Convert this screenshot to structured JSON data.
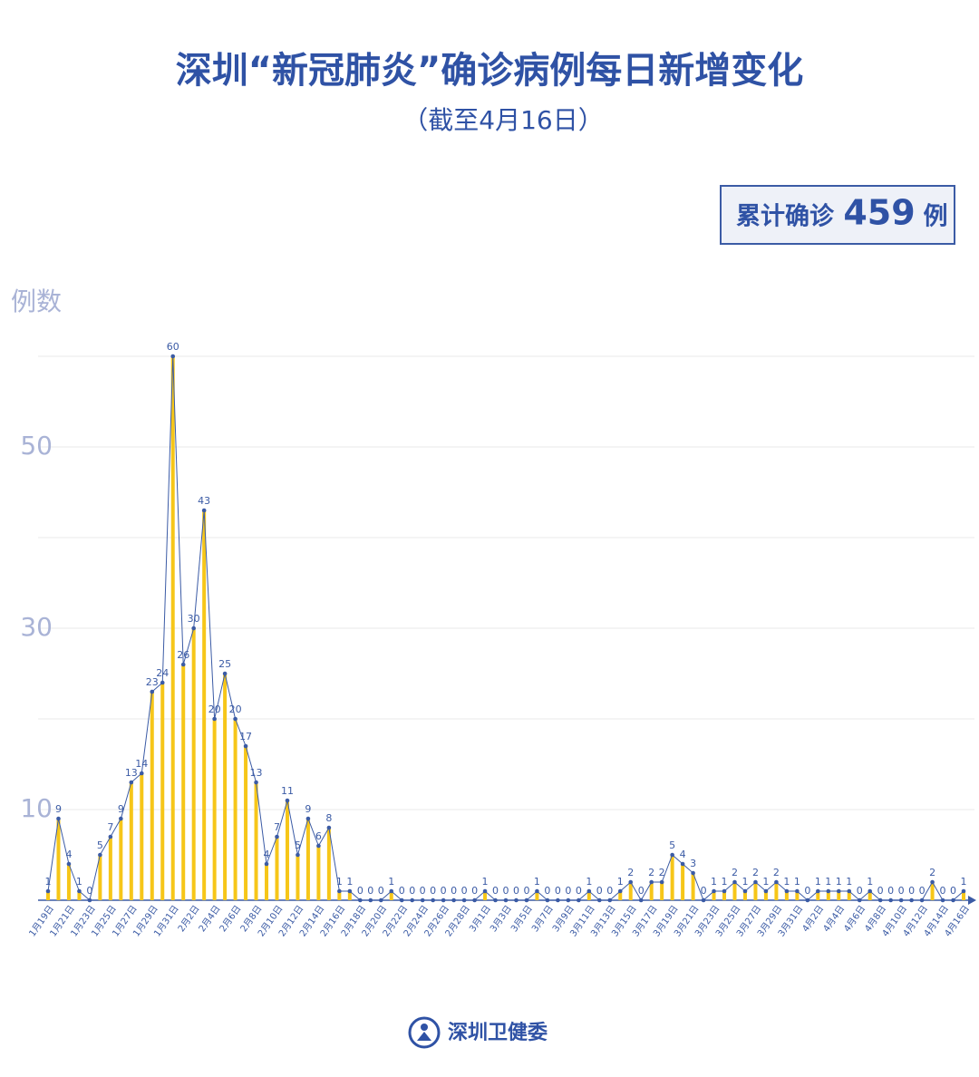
{
  "chart_data": {
    "type": "bar_line",
    "title": "深圳“新冠肺炎”确诊病例每日新增变化",
    "subtitle": "（截至4月16日）",
    "total_box": {
      "prefix": "累计确诊",
      "total": 459,
      "suffix": "例"
    },
    "y_label": "例数",
    "source": "深圳卫健委",
    "categories": [
      "1月19日",
      null,
      "1月21日",
      null,
      "1月23日",
      null,
      "1月25日",
      null,
      "1月27日",
      null,
      "1月29日",
      null,
      "1月31日",
      null,
      "2月2日",
      null,
      "2月4日",
      null,
      "2月6日",
      null,
      "2月8日",
      null,
      "2月10日",
      null,
      "2月12日",
      null,
      "2月14日",
      null,
      "2月16日",
      null,
      "2月18日",
      null,
      "2月20日",
      null,
      "2月22日",
      null,
      "2月24日",
      null,
      "2月26日",
      null,
      "2月28日",
      null,
      "3月1日",
      null,
      "3月3日",
      null,
      "3月5日",
      null,
      "3月7日",
      null,
      "3月9日",
      null,
      "3月11日",
      null,
      "3月13日",
      null,
      "3月15日",
      null,
      "3月17日",
      null,
      "3月19日",
      null,
      "3月21日",
      null,
      "3月23日",
      null,
      "3月25日",
      null,
      "3月27日",
      null,
      "3月29日",
      null,
      "3月31日",
      null,
      "4月2日",
      null,
      "4月4日",
      null,
      "4月6日",
      null,
      "4月8日",
      null,
      "4月10日",
      null,
      "4月12日",
      null,
      "4月14日",
      null,
      "4月16日"
    ],
    "values": [
      1,
      9,
      4,
      1,
      0,
      5,
      7,
      9,
      13,
      14,
      23,
      24,
      60,
      26,
      30,
      43,
      20,
      25,
      20,
      17,
      13,
      4,
      7,
      11,
      5,
      9,
      6,
      8,
      1,
      1,
      0,
      0,
      0,
      1,
      0,
      0,
      0,
      0,
      0,
      0,
      0,
      0,
      1,
      0,
      0,
      0,
      0,
      1,
      0,
      0,
      0,
      0,
      1,
      0,
      0,
      1,
      2,
      0,
      2,
      2,
      5,
      4,
      3,
      0,
      1,
      1,
      2,
      1,
      2,
      1,
      2,
      1,
      1,
      0,
      1,
      1,
      1,
      1,
      0,
      1,
      0,
      0,
      0,
      0,
      0,
      2,
      0,
      0,
      1
    ],
    "bar_color": "#f6c619",
    "line_color": "#3b5ba5",
    "ylim": [
      0,
      60
    ],
    "yticks": [
      10,
      30,
      50
    ],
    "ygrid": [
      10,
      20,
      30,
      40,
      50,
      60
    ]
  }
}
